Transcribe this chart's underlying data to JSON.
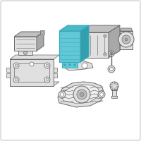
{
  "bg_color": "#ffffff",
  "border_color": "#c8c8c8",
  "line_color": "#999999",
  "dark_line": "#666666",
  "blue_fill": "#62c8d8",
  "blue_stroke": "#3aabb8",
  "blue_top": "#4ab8c8",
  "blue_side": "#30a0b0",
  "light_gray": "#e0e0e0",
  "mid_gray": "#c0c0c0",
  "dark_gray": "#a8a8a8",
  "fig_size": [
    2.0,
    2.0
  ],
  "dpi": 100
}
